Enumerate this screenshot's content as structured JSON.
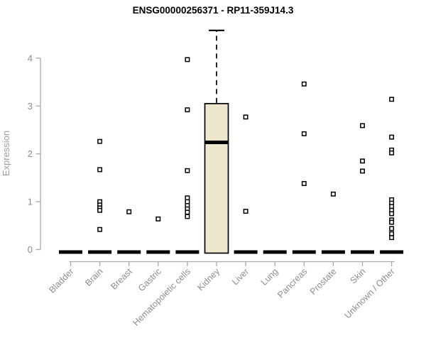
{
  "chart_data": {
    "type": "boxplot",
    "title": "ENSG00000256371 - RP11-359J14.3",
    "xlabel": "",
    "ylabel": "Expression",
    "ylim": [
      0,
      4
    ],
    "yticks": [
      0,
      1,
      2,
      3,
      4
    ],
    "grid": false,
    "legend": "none",
    "categories": [
      "Bladder",
      "Brain",
      "Breast",
      "Gastric",
      "Hematopoietic cells",
      "Kidney",
      "Liver",
      "Lung",
      "Pancreas",
      "Prostate",
      "Skin",
      "Unknown / Other"
    ],
    "boxes": [
      {
        "category": "Bladder",
        "median": 0,
        "q1": 0,
        "q3": 0,
        "whisker_low": 0,
        "whisker_high": 0,
        "outliers": []
      },
      {
        "category": "Brain",
        "median": 0,
        "q1": 0,
        "q3": 0,
        "whisker_low": 0,
        "whisker_high": 0,
        "outliers": [
          2.26,
          1.67,
          1.0,
          0.93,
          0.87,
          0.82,
          0.42
        ]
      },
      {
        "category": "Breast",
        "median": 0,
        "q1": 0,
        "q3": 0,
        "whisker_low": 0,
        "whisker_high": 0,
        "outliers": [
          0.79
        ]
      },
      {
        "category": "Gastric",
        "median": 0,
        "q1": 0,
        "q3": 0,
        "whisker_low": 0,
        "whisker_high": 0,
        "outliers": [
          0.64
        ]
      },
      {
        "category": "Hematopoietic cells",
        "median": 0,
        "q1": 0,
        "q3": 0,
        "whisker_low": 0,
        "whisker_high": 0,
        "outliers": [
          3.97,
          2.92,
          1.65,
          1.08,
          1.0,
          0.92,
          0.85,
          0.78,
          0.69
        ]
      },
      {
        "category": "Kidney",
        "median": 2.24,
        "q1": 0,
        "q3": 3.05,
        "whisker_low": 0,
        "whisker_high": 4.58,
        "outliers": []
      },
      {
        "category": "Liver",
        "median": 0,
        "q1": 0,
        "q3": 0,
        "whisker_low": 0,
        "whisker_high": 0,
        "outliers": [
          2.77,
          0.8
        ]
      },
      {
        "category": "Lung",
        "median": 0,
        "q1": 0,
        "q3": 0,
        "whisker_low": 0,
        "whisker_high": 0,
        "outliers": []
      },
      {
        "category": "Pancreas",
        "median": 0,
        "q1": 0,
        "q3": 0,
        "whisker_low": 0,
        "whisker_high": 0,
        "outliers": [
          3.46,
          2.42,
          1.38
        ]
      },
      {
        "category": "Prostate",
        "median": 0,
        "q1": 0,
        "q3": 0,
        "whisker_low": 0,
        "whisker_high": 0,
        "outliers": [
          1.16
        ]
      },
      {
        "category": "Skin",
        "median": 0,
        "q1": 0,
        "q3": 0,
        "whisker_low": 0,
        "whisker_high": 0,
        "outliers": [
          2.59,
          1.85,
          1.64
        ]
      },
      {
        "category": "Unknown / Other",
        "median": 0,
        "q1": 0,
        "q3": 0,
        "whisker_low": 0,
        "whisker_high": 0,
        "outliers": [
          3.14,
          2.35,
          2.08,
          2.02,
          1.04,
          0.97,
          0.9,
          0.82,
          0.75,
          0.62,
          0.57,
          0.44,
          0.33,
          0.25
        ]
      }
    ],
    "colors": {
      "box_fill": "#ece7cd",
      "box_stroke": "#000000",
      "median": "#000000",
      "whisker": "#000000",
      "outlier_stroke": "#000000",
      "outlier_fill": "#ffffff",
      "axis": "#a9a9a9",
      "tick_text": "#8d8d8d",
      "label_text": "#8d8d8d",
      "title": "#000000"
    }
  }
}
